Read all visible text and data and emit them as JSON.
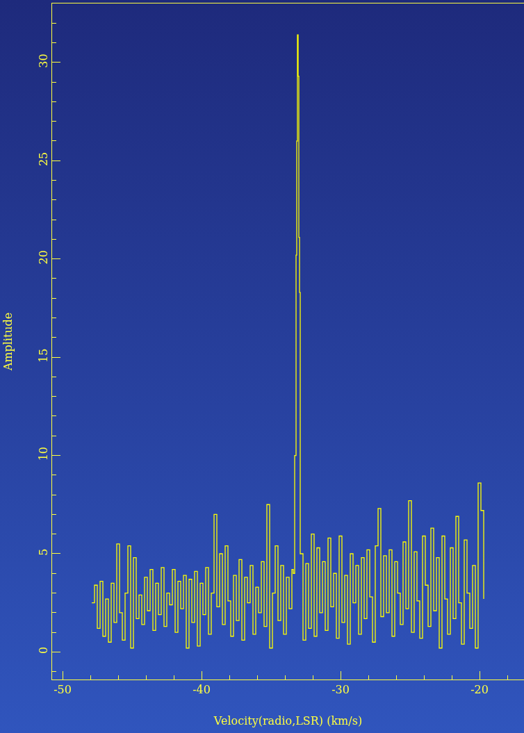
{
  "chart_data": {
    "type": "step",
    "xlabel": "Velocity(radio,LSR) (km/s)",
    "ylabel": "Amplitude",
    "xlim": [
      -50.75,
      -16.8
    ],
    "ylim": [
      -1.4,
      33
    ],
    "xticks": [
      -50,
      -40,
      -30,
      -20
    ],
    "yticks": [
      0,
      5,
      10,
      15,
      20,
      25,
      30
    ],
    "grid": false,
    "series": [
      {
        "color": "#ffff00",
        "x": [
          -47.9,
          -47.7,
          -47.5,
          -47.3,
          -47.1,
          -46.9,
          -46.7,
          -46.5,
          -46.3,
          -46.1,
          -45.9,
          -45.7,
          -45.5,
          -45.3,
          -45.1,
          -44.9,
          -44.7,
          -44.5,
          -44.3,
          -44.1,
          -43.9,
          -43.7,
          -43.5,
          -43.3,
          -43.1,
          -42.9,
          -42.7,
          -42.5,
          -42.3,
          -42.1,
          -41.9,
          -41.7,
          -41.5,
          -41.3,
          -41.1,
          -40.9,
          -40.7,
          -40.5,
          -40.3,
          -40.1,
          -39.9,
          -39.7,
          -39.5,
          -39.3,
          -39.1,
          -38.9,
          -38.7,
          -38.5,
          -38.3,
          -38.1,
          -37.9,
          -37.7,
          -37.5,
          -37.3,
          -37.1,
          -36.9,
          -36.7,
          -36.5,
          -36.3,
          -36.1,
          -35.9,
          -35.7,
          -35.5,
          -35.3,
          -35.1,
          -34.9,
          -34.7,
          -34.5,
          -34.3,
          -34.1,
          -33.9,
          -33.7,
          -33.5,
          -33.4,
          -33.3,
          -33.2,
          -33.15,
          -33.1,
          -33.05,
          -33.0,
          -32.95,
          -32.9,
          -32.7,
          -32.5,
          -32.3,
          -32.1,
          -31.9,
          -31.7,
          -31.5,
          -31.3,
          -31.1,
          -30.9,
          -30.7,
          -30.5,
          -30.3,
          -30.1,
          -29.9,
          -29.7,
          -29.5,
          -29.3,
          -29.1,
          -28.9,
          -28.7,
          -28.5,
          -28.3,
          -28.1,
          -27.9,
          -27.7,
          -27.5,
          -27.3,
          -27.1,
          -26.9,
          -26.7,
          -26.5,
          -26.3,
          -26.1,
          -25.9,
          -25.7,
          -25.5,
          -25.3,
          -25.1,
          -24.9,
          -24.7,
          -24.5,
          -24.3,
          -24.1,
          -23.9,
          -23.7,
          -23.5,
          -23.3,
          -23.1,
          -22.9,
          -22.7,
          -22.5,
          -22.3,
          -22.1,
          -21.9,
          -21.7,
          -21.5,
          -21.3,
          -21.1,
          -20.9,
          -20.7,
          -20.5,
          -20.3,
          -20.1,
          -19.9,
          -19.7
        ],
        "values": [
          2.5,
          3.4,
          1.2,
          3.6,
          0.8,
          2.7,
          0.5,
          3.5,
          1.5,
          5.5,
          2.0,
          0.6,
          3.0,
          5.4,
          0.2,
          4.8,
          1.7,
          2.9,
          1.4,
          3.8,
          2.1,
          4.2,
          1.1,
          3.5,
          1.9,
          4.3,
          1.3,
          3.0,
          2.4,
          4.2,
          1.0,
          3.6,
          2.2,
          3.9,
          0.2,
          3.7,
          1.5,
          4.1,
          0.3,
          3.5,
          1.9,
          4.3,
          0.9,
          3.0,
          7.0,
          2.3,
          5.0,
          1.4,
          5.4,
          2.6,
          0.8,
          3.9,
          1.6,
          4.7,
          0.6,
          3.8,
          2.5,
          4.4,
          0.9,
          3.3,
          2.0,
          4.6,
          1.3,
          7.5,
          0.2,
          3.0,
          5.4,
          1.6,
          4.4,
          0.9,
          3.8,
          2.2,
          4.2,
          4.0,
          10.0,
          20.2,
          26.0,
          31.4,
          29.3,
          21.1,
          18.3,
          5.0,
          0.6,
          4.5,
          1.2,
          6.0,
          0.8,
          5.3,
          2.0,
          4.6,
          1.1,
          5.8,
          2.3,
          4.0,
          0.7,
          5.9,
          1.5,
          3.9,
          0.4,
          5.0,
          2.5,
          4.4,
          0.9,
          4.8,
          1.7,
          5.2,
          2.8,
          0.5,
          5.4,
          7.3,
          1.8,
          4.9,
          2.0,
          5.2,
          0.8,
          4.6,
          3.0,
          1.4,
          5.6,
          2.2,
          7.7,
          1.0,
          5.1,
          2.6,
          0.7,
          5.9,
          3.4,
          1.3,
          6.3,
          2.1,
          4.8,
          0.2,
          5.9,
          2.7,
          0.9,
          5.3,
          1.7,
          6.9,
          2.5,
          0.4,
          5.7,
          3.0,
          1.2,
          4.4,
          0.2,
          8.6,
          7.2,
          2.7
        ]
      }
    ]
  }
}
